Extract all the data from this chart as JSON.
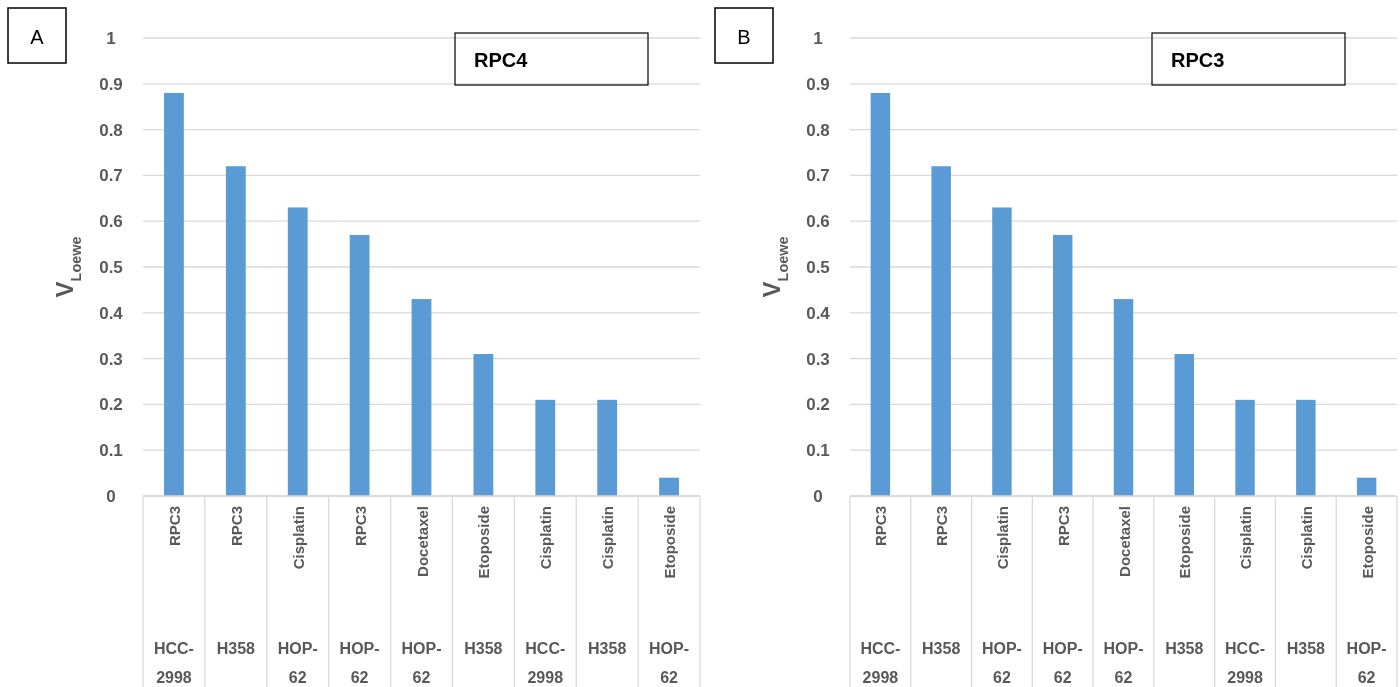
{
  "chart_data": [
    {
      "type": "bar",
      "title": "RPC4",
      "annotations": [
        "A"
      ],
      "ylabel": "V$_{Loewe}$",
      "categories": [
        "RPC3\nHCC-2998",
        "RPC3\nH358",
        "Cisplatin\nHOP-62",
        "RPC3\nHOP-62",
        "Docetaxel\nHOP-62",
        "Etoposide\nH358",
        "Cisplatin\nHCC-2998",
        "Cisplatin\nH358",
        "Etoposide\nHOP-62"
      ],
      "values": [
        0.88,
        0.72,
        0.63,
        0.57,
        0.43,
        0.31,
        0.21,
        0.21,
        0.04
      ],
      "color": "#5b9bd5",
      "ylim": [
        0,
        1
      ],
      "yticks": [
        0,
        0.1,
        0.2,
        0.3,
        0.4,
        0.5,
        0.6,
        0.7,
        0.8,
        0.9,
        1
      ],
      "grid": "y"
    },
    {
      "type": "bar",
      "title": "RPC3",
      "annotations": [
        "B"
      ],
      "ylabel": "V$_{Loewe}$",
      "categories": [
        "RPC3\nHCC-2998",
        "RPC3\nH358",
        "Cisplatin\nHOP-62",
        "RPC3\nHOP-62",
        "Docetaxel\nHOP-62",
        "Etoposide\nH358",
        "Cisplatin\nHCC-2998",
        "Cisplatin\nH358",
        "Etoposide\nHOP-62"
      ],
      "values": [
        0.88,
        0.72,
        0.63,
        0.57,
        0.43,
        0.31,
        0.21,
        0.21,
        0.04
      ],
      "color": "#5b9bd5",
      "ylim": [
        0,
        1
      ],
      "yticks": [
        0,
        0.1,
        0.2,
        0.3,
        0.4,
        0.5,
        0.6,
        0.7,
        0.8,
        0.9,
        1
      ],
      "grid": "y"
    }
  ]
}
